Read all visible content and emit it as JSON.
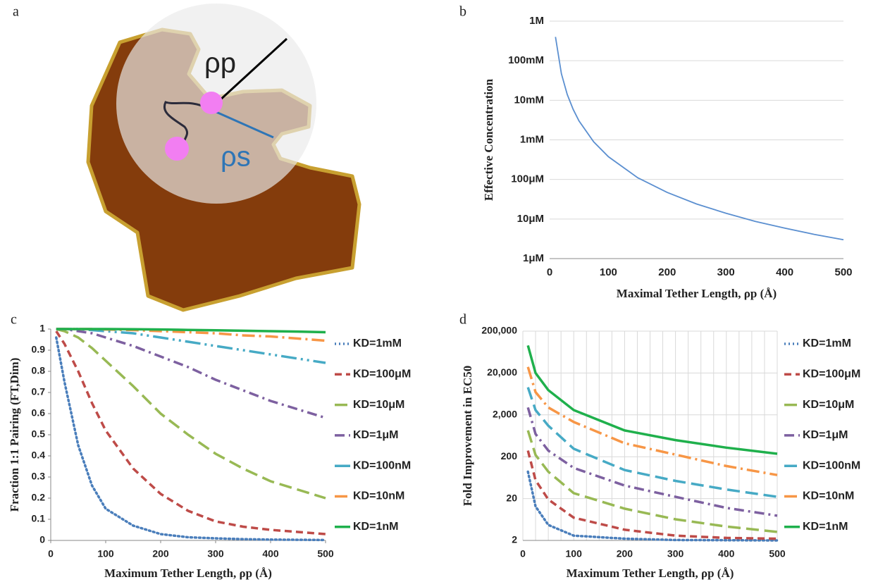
{
  "diagram": {
    "label": "a",
    "labels": [
      "ρp",
      "ρs"
    ]
  },
  "chart_data": [
    {
      "type": "line",
      "label": "b",
      "xlabel": "Maximal Tether Length, ρp (Å)",
      "ylabel": "Effective Concentration",
      "log_y": true,
      "grid": true,
      "xlim": [
        0,
        500
      ],
      "xticks": [
        0,
        100,
        200,
        300,
        400,
        500
      ],
      "ylim": [
        1e-06,
        1
      ],
      "yticks": [
        {
          "value": 1e-06,
          "label": "1μM"
        },
        {
          "value": 1e-05,
          "label": "10μM"
        },
        {
          "value": 0.0001,
          "label": "100μM"
        },
        {
          "value": 0.001,
          "label": "1mM"
        },
        {
          "value": 0.01,
          "label": "10mM"
        },
        {
          "value": 0.1,
          "label": "100mM"
        },
        {
          "value": 1,
          "label": "1M"
        }
      ],
      "x": [
        10,
        20,
        30,
        40,
        50,
        75,
        100,
        150,
        200,
        250,
        300,
        350,
        400,
        450,
        500
      ],
      "series": [
        {
          "color": "#5b8fd0",
          "dash": "solid",
          "values": [
            0.4,
            0.047,
            0.014,
            0.0059,
            0.003,
            0.00089,
            0.000375,
            0.00011,
            4.7e-05,
            2.4e-05,
            1.4e-05,
            8.7e-06,
            5.9e-06,
            4.1e-06,
            3e-06
          ]
        }
      ]
    },
    {
      "type": "line",
      "label": "c",
      "xlabel": "Maximum Tether Length, ρp (Å)",
      "ylabel": "Fraction 1:1 Pairing (FT,Dim)",
      "log_y": false,
      "grid": false,
      "xlim": [
        0,
        500
      ],
      "xticks": [
        0,
        100,
        200,
        300,
        400,
        500
      ],
      "ylim": [
        0,
        1
      ],
      "yticks": [
        0,
        0.1,
        0.2,
        0.3,
        0.4,
        0.5,
        0.6,
        0.7,
        0.8,
        0.9,
        1
      ],
      "x": [
        10,
        25,
        50,
        75,
        100,
        150,
        200,
        250,
        300,
        350,
        400,
        450,
        500
      ],
      "series": [
        {
          "name": "KD=1mM",
          "color": "#4a7ebb",
          "dash": "dot",
          "values": [
            0.96,
            0.75,
            0.45,
            0.26,
            0.15,
            0.07,
            0.03,
            0.015,
            0.01,
            0.006,
            0.004,
            0.003,
            0.002
          ]
        },
        {
          "name": "KD=100μM",
          "color": "#be4b48",
          "dash": "dash",
          "values": [
            0.99,
            0.93,
            0.8,
            0.65,
            0.52,
            0.34,
            0.22,
            0.14,
            0.09,
            0.065,
            0.05,
            0.04,
            0.03
          ]
        },
        {
          "name": "KD=10μM",
          "color": "#98b954",
          "dash": "longdash",
          "values": [
            1,
            0.99,
            0.96,
            0.91,
            0.85,
            0.73,
            0.6,
            0.5,
            0.41,
            0.34,
            0.28,
            0.24,
            0.2
          ]
        },
        {
          "name": "KD=1μM",
          "color": "#7d60a0",
          "dash": "dashdot",
          "values": [
            1,
            1,
            0.99,
            0.98,
            0.96,
            0.92,
            0.87,
            0.82,
            0.76,
            0.71,
            0.66,
            0.62,
            0.58
          ]
        },
        {
          "name": "KD=100nM",
          "color": "#46aac5",
          "dash": "longdashdotdot",
          "values": [
            1,
            1,
            1,
            0.995,
            0.99,
            0.98,
            0.96,
            0.94,
            0.92,
            0.9,
            0.88,
            0.86,
            0.84
          ]
        },
        {
          "name": "KD=10nM",
          "color": "#f79646",
          "dash": "longdashdot",
          "values": [
            1,
            1,
            1,
            1,
            0.998,
            0.995,
            0.99,
            0.985,
            0.98,
            0.97,
            0.965,
            0.955,
            0.945
          ]
        },
        {
          "name": "KD=1nM",
          "color": "#1fb04c",
          "dash": "solid",
          "values": [
            1,
            1,
            1,
            1,
            1,
            0.999,
            0.998,
            0.996,
            0.994,
            0.992,
            0.99,
            0.988,
            0.985
          ]
        }
      ]
    },
    {
      "type": "line",
      "label": "d",
      "xlabel": "Maximum Tether Length, ρp (Å)",
      "ylabel": "Fold Improvement in EC50",
      "log_y": true,
      "grid": true,
      "xlim": [
        0,
        500
      ],
      "xticks": [
        0,
        100,
        200,
        300,
        400,
        500
      ],
      "xminorticks": [
        25,
        50,
        75,
        125,
        150,
        175,
        225,
        250,
        275,
        325,
        350,
        375,
        425,
        450,
        475
      ],
      "ylim": [
        2,
        200000
      ],
      "yticks": [
        2,
        20,
        200,
        {
          "value": 2000,
          "label": "2,000"
        },
        {
          "value": 20000,
          "label": "20,000"
        },
        {
          "value": 200000,
          "label": "200,000"
        }
      ],
      "x": [
        10,
        25,
        50,
        100,
        200,
        300,
        400,
        500
      ],
      "series": [
        {
          "name": "KD=1mM",
          "color": "#4a7ebb",
          "dash": "dot",
          "values": [
            88,
            13,
            4.7,
            2.6,
            2.2,
            2.05,
            2.02,
            2
          ]
        },
        {
          "name": "KD=100μM",
          "color": "#be4b48",
          "dash": "dash",
          "values": [
            280,
            55,
            19,
            7,
            3.6,
            2.6,
            2.3,
            2.2
          ]
        },
        {
          "name": "KD=10μM",
          "color": "#98b954",
          "dash": "longdash",
          "values": [
            850,
            220,
            88,
            27,
            11.5,
            6.4,
            4.3,
            3.2
          ]
        },
        {
          "name": "KD=1μM",
          "color": "#7d60a0",
          "dash": "dashdot",
          "values": [
            3000,
            700,
            280,
            108,
            41,
            22,
            12,
            7.8
          ]
        },
        {
          "name": "KD=100nM",
          "color": "#46aac5",
          "dash": "longdash",
          "values": [
            9100,
            2600,
            1100,
            310,
            96,
            53,
            33,
            22
          ]
        },
        {
          "name": "KD=10nM",
          "color": "#f79646",
          "dash": "longdashdot",
          "values": [
            28000,
            7000,
            3000,
            1350,
            420,
            225,
            120,
            73
          ]
        },
        {
          "name": "KD=1nM",
          "color": "#1fb04c",
          "dash": "solid",
          "values": [
            91000,
            20000,
            7800,
            2600,
            850,
            500,
            330,
            235
          ]
        }
      ]
    }
  ]
}
